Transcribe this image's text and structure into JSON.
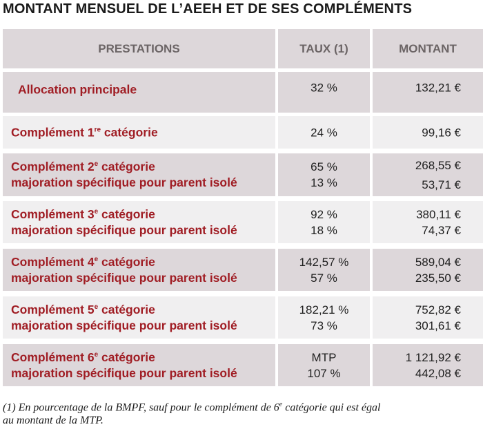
{
  "title": "MONTANT MENSUEL DE L’AEEH ET DE SES COMPLÉMENTS",
  "headers": {
    "prestations": "PRESTATIONS",
    "taux": "TAUX (1)",
    "montant": "MONTANT"
  },
  "rows": [
    {
      "label": "Allocation principale",
      "taux": "32 %",
      "montant": "132,21 €"
    },
    {
      "label_pre": "Complément 1",
      "label_sup": "re",
      "label_post": " catégorie",
      "taux": "24 %",
      "montant": "99,16 €"
    },
    {
      "label_pre": "Complément 2",
      "label_sup": "e",
      "label_post": " catégorie",
      "label2": "majoration spécifique pour parent isolé",
      "taux": "65 %",
      "taux2": "13 %",
      "montant": "268,55 €",
      "montant2": "53,71 €"
    },
    {
      "label_pre": "Complément 3",
      "label_sup": "e",
      "label_post": " catégorie",
      "label2": "majoration spécifique pour parent isolé",
      "taux": "92 %",
      "taux2": "18 %",
      "montant": "380,11 €",
      "montant2": "74,37 €"
    },
    {
      "label_pre": "Complément 4",
      "label_sup": "e",
      "label_post": " catégorie",
      "label2": "majoration spécifique pour parent isolé",
      "taux": "142,57 %",
      "taux2": "57 %",
      "montant": "589,04 €",
      "montant2": "235,50 €"
    },
    {
      "label_pre": "Complément 5",
      "label_sup": "e",
      "label_post": " catégorie",
      "label2": "majoration spécifique pour parent isolé",
      "taux": "182,21 %",
      "taux2": "73 %",
      "montant": "752,82 €",
      "montant2": "301,61 €"
    },
    {
      "label_pre": "Complément 6",
      "label_sup": "e",
      "label_post": " catégorie",
      "label2": "majoration spécifique pour parent isolé",
      "taux": "MTP",
      "taux2": "107 %",
      "montant": "1 121,92 €",
      "montant2": "442,08 €"
    }
  ],
  "footnote_line1": "(1) En pourcentage de la BMPF, sauf pour le complément de 6",
  "footnote_sup": "e",
  "footnote_line1_end": " catégorie qui est égal",
  "footnote_line2": "au montant de la MTP."
}
